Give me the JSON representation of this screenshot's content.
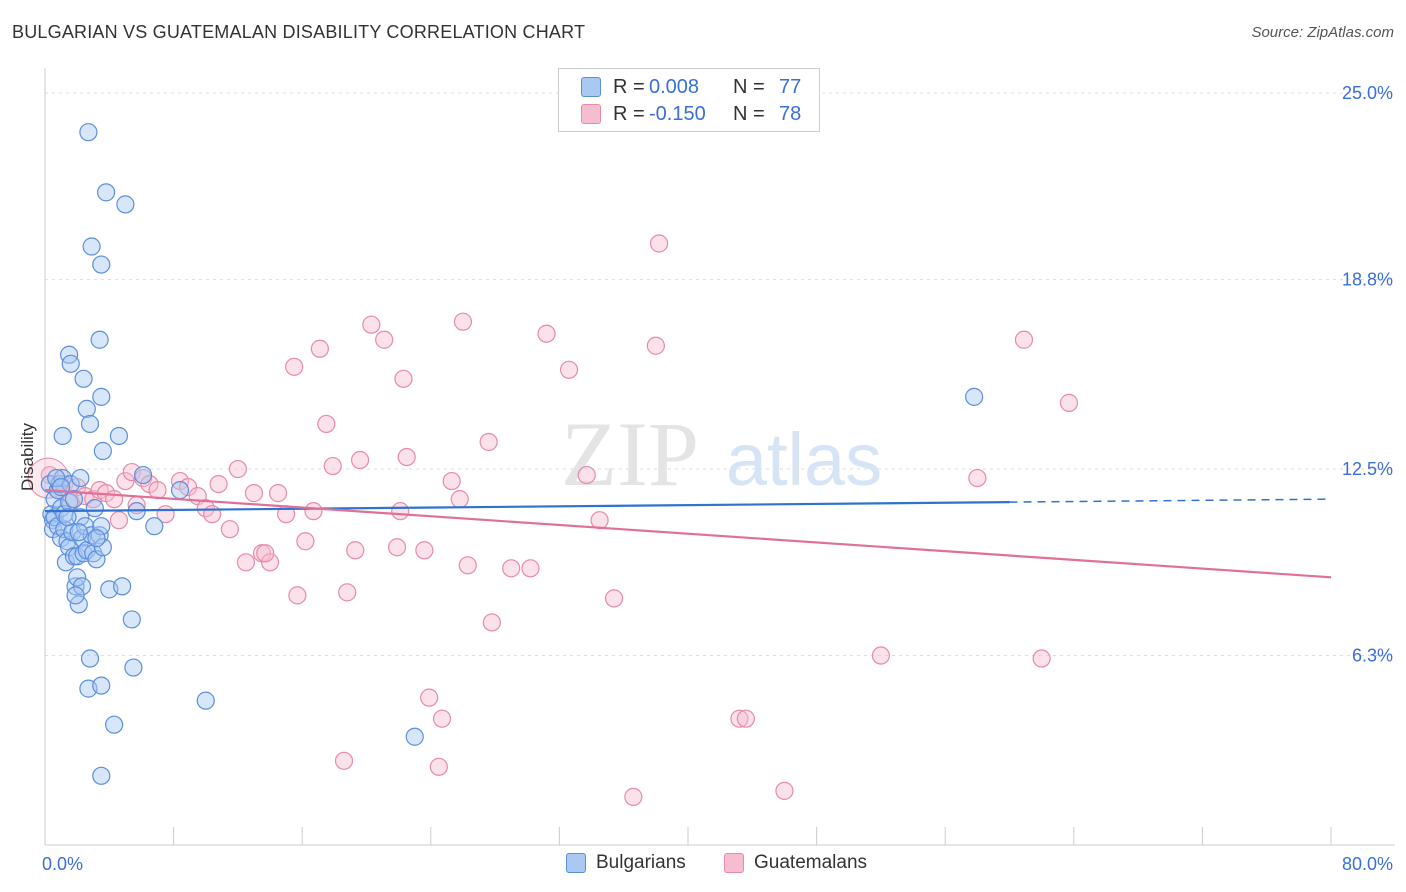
{
  "title": "BULGARIAN VS GUATEMALAN DISABILITY CORRELATION CHART",
  "source": "Source: ZipAtlas.com",
  "watermark": {
    "zip": "ZIP",
    "atlas": "atlas"
  },
  "legend_top": [
    {
      "r_label": "R =",
      "r_value": "0.008",
      "n_label": "N =",
      "n_value": "77"
    },
    {
      "r_label": "R =",
      "r_value": "-0.150",
      "n_label": "N =",
      "n_value": "78"
    }
  ],
  "legend_bottom": [
    "Bulgarians",
    "Guatemalans"
  ],
  "colors": {
    "bulgarian_fill": "#a9c8f2",
    "bulgarian_stroke": "#5b8fdc",
    "bulgarian_line": "#2f72d0",
    "guatemalan_fill": "#f6bcd0",
    "guatemalan_stroke": "#e88aa8",
    "guatemalan_line": "#e0709a",
    "tick_label": "#3a6fd8",
    "grid": "#dddddd"
  },
  "chart_data": {
    "type": "scatter",
    "title": "BULGARIAN VS GUATEMALAN DISABILITY CORRELATION CHART",
    "xlabel": "",
    "ylabel": "Disability",
    "xlim": [
      0,
      80
    ],
    "ylim": [
      0,
      26.5
    ],
    "x_tick_labels": [
      "0.0%",
      "80.0%"
    ],
    "y_ticks": [
      6.3,
      12.5,
      18.8,
      25.0
    ],
    "y_tick_labels": [
      "6.3%",
      "12.5%",
      "18.8%",
      "25.0%"
    ],
    "grid": true,
    "series": [
      {
        "name": "Bulgarians",
        "R": 0.008,
        "N": 77,
        "trend": {
          "x": [
            0,
            60
          ],
          "y": [
            11.1,
            11.4
          ],
          "dashed_to_x": 80,
          "dashed_end_y": 11.5
        },
        "points": [
          [
            0.3,
            12.0
          ],
          [
            0.4,
            11.0
          ],
          [
            0.5,
            10.8
          ],
          [
            0.5,
            10.5
          ],
          [
            0.6,
            10.9
          ],
          [
            0.6,
            11.5
          ],
          [
            0.8,
            10.6
          ],
          [
            0.8,
            11.8
          ],
          [
            0.9,
            12.0
          ],
          [
            1.0,
            10.2
          ],
          [
            1.0,
            11.2
          ],
          [
            1.1,
            12.2
          ],
          [
            1.2,
            10.5
          ],
          [
            1.2,
            11.0
          ],
          [
            1.3,
            9.4
          ],
          [
            1.4,
            10.1
          ],
          [
            1.5,
            9.9
          ],
          [
            1.5,
            11.4
          ],
          [
            1.6,
            12.0
          ],
          [
            1.7,
            10.4
          ],
          [
            1.8,
            9.6
          ],
          [
            1.8,
            11.5
          ],
          [
            1.9,
            8.6
          ],
          [
            2.0,
            9.6
          ],
          [
            2.1,
            8.0
          ],
          [
            2.2,
            10.9
          ],
          [
            2.3,
            10.2
          ],
          [
            2.4,
            9.7
          ],
          [
            2.5,
            10.6
          ],
          [
            2.6,
            9.8
          ],
          [
            2.7,
            5.2
          ],
          [
            2.8,
            6.2
          ],
          [
            2.9,
            10.3
          ],
          [
            3.0,
            9.7
          ],
          [
            3.2,
            9.5
          ],
          [
            3.4,
            10.3
          ],
          [
            3.5,
            10.6
          ],
          [
            3.6,
            9.9
          ],
          [
            3.1,
            11.2
          ],
          [
            2.2,
            12.2
          ],
          [
            2.0,
            8.9
          ],
          [
            2.3,
            8.6
          ],
          [
            1.5,
            16.3
          ],
          [
            1.6,
            16.0
          ],
          [
            1.9,
            8.3
          ],
          [
            2.4,
            15.5
          ],
          [
            2.6,
            14.5
          ],
          [
            2.8,
            14.0
          ],
          [
            2.7,
            23.7
          ],
          [
            2.9,
            19.9
          ],
          [
            3.4,
            16.8
          ],
          [
            3.5,
            14.9
          ],
          [
            3.6,
            13.1
          ],
          [
            3.5,
            19.3
          ],
          [
            3.8,
            21.7
          ],
          [
            4.0,
            8.5
          ],
          [
            4.3,
            4.0
          ],
          [
            4.6,
            13.6
          ],
          [
            4.8,
            8.6
          ],
          [
            5.0,
            21.3
          ],
          [
            5.4,
            7.5
          ],
          [
            5.5,
            5.9
          ],
          [
            5.7,
            11.1
          ],
          [
            6.1,
            12.3
          ],
          [
            6.8,
            10.6
          ],
          [
            8.4,
            11.8
          ],
          [
            10.0,
            4.8
          ],
          [
            23.0,
            3.6
          ],
          [
            57.8,
            14.9
          ],
          [
            1.1,
            13.6
          ],
          [
            3.5,
            2.3
          ],
          [
            3.5,
            5.3
          ],
          [
            0.7,
            12.2
          ],
          [
            1.0,
            11.9
          ],
          [
            1.4,
            10.9
          ],
          [
            2.1,
            10.4
          ],
          [
            3.2,
            10.2
          ]
        ]
      },
      {
        "name": "Guatemalans",
        "R": -0.15,
        "N": 78,
        "trend": {
          "x": [
            0,
            80
          ],
          "y": [
            11.8,
            8.9
          ]
        },
        "points": [
          [
            0.3,
            12.3
          ],
          [
            0.8,
            11.8
          ],
          [
            1.2,
            12.0
          ],
          [
            1.6,
            11.4
          ],
          [
            2.0,
            11.9
          ],
          [
            2.5,
            11.6
          ],
          [
            3.0,
            11.5
          ],
          [
            3.4,
            11.8
          ],
          [
            3.8,
            11.7
          ],
          [
            4.3,
            11.5
          ],
          [
            4.6,
            10.8
          ],
          [
            5.0,
            12.1
          ],
          [
            5.4,
            12.4
          ],
          [
            5.7,
            11.3
          ],
          [
            6.1,
            12.2
          ],
          [
            6.5,
            12.0
          ],
          [
            7.0,
            11.8
          ],
          [
            7.5,
            11.0
          ],
          [
            8.4,
            12.1
          ],
          [
            8.9,
            11.9
          ],
          [
            9.5,
            11.6
          ],
          [
            10.0,
            11.2
          ],
          [
            10.4,
            11.0
          ],
          [
            10.8,
            12.0
          ],
          [
            11.5,
            10.5
          ],
          [
            12.0,
            12.5
          ],
          [
            12.5,
            9.4
          ],
          [
            13.0,
            11.7
          ],
          [
            13.5,
            9.7
          ],
          [
            14.0,
            9.4
          ],
          [
            14.5,
            11.7
          ],
          [
            15.0,
            11.0
          ],
          [
            15.5,
            15.9
          ],
          [
            15.7,
            8.3
          ],
          [
            16.2,
            10.1
          ],
          [
            16.7,
            11.1
          ],
          [
            17.1,
            16.5
          ],
          [
            17.5,
            14.0
          ],
          [
            17.9,
            12.6
          ],
          [
            18.6,
            2.8
          ],
          [
            18.8,
            8.4
          ],
          [
            19.3,
            9.8
          ],
          [
            19.6,
            12.8
          ],
          [
            20.3,
            17.3
          ],
          [
            21.1,
            16.8
          ],
          [
            21.9,
            9.9
          ],
          [
            22.1,
            11.1
          ],
          [
            22.3,
            15.5
          ],
          [
            22.5,
            12.9
          ],
          [
            23.6,
            9.8
          ],
          [
            23.9,
            4.9
          ],
          [
            24.5,
            2.6
          ],
          [
            24.7,
            4.2
          ],
          [
            25.3,
            12.1
          ],
          [
            25.8,
            11.5
          ],
          [
            26.0,
            17.4
          ],
          [
            26.3,
            9.3
          ],
          [
            27.6,
            13.4
          ],
          [
            27.8,
            7.4
          ],
          [
            29.0,
            9.2
          ],
          [
            30.2,
            9.2
          ],
          [
            31.2,
            17.0
          ],
          [
            32.6,
            15.8
          ],
          [
            33.7,
            12.3
          ],
          [
            34.5,
            10.8
          ],
          [
            35.4,
            8.2
          ],
          [
            36.6,
            1.6
          ],
          [
            38.0,
            16.6
          ],
          [
            38.2,
            20.0
          ],
          [
            43.2,
            4.2
          ],
          [
            43.6,
            4.2
          ],
          [
            46.0,
            1.8
          ],
          [
            52.0,
            6.3
          ],
          [
            58.0,
            12.2
          ],
          [
            60.9,
            16.8
          ],
          [
            62.0,
            6.2
          ],
          [
            63.7,
            14.7
          ],
          [
            13.7,
            9.7
          ]
        ]
      }
    ]
  }
}
